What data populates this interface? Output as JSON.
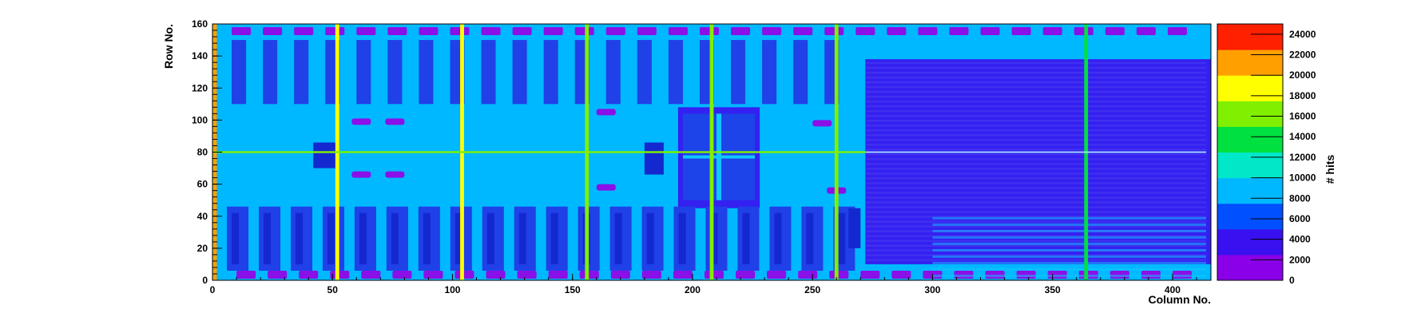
{
  "chart_data": {
    "type": "heatmap",
    "title": "",
    "xlabel": "Column No.",
    "ylabel": "Row No.",
    "zlabel": "# hits",
    "xlim": [
      0,
      416
    ],
    "ylim": [
      0,
      160
    ],
    "zlim": [
      0,
      25000
    ],
    "x_ticks": [
      0,
      50,
      100,
      150,
      200,
      250,
      300,
      350,
      400
    ],
    "y_ticks": [
      0,
      20,
      40,
      60,
      80,
      100,
      120,
      140,
      160
    ],
    "z_ticks": [
      0,
      2000,
      4000,
      6000,
      8000,
      10000,
      12000,
      14000,
      16000,
      18000,
      20000,
      22000,
      24000
    ],
    "colormap": [
      "#8a00e8",
      "#3a10f0",
      "#0050ff",
      "#00b8ff",
      "#00e8c8",
      "#00e040",
      "#80f000",
      "#ffff00",
      "#ffa000",
      "#ff2000"
    ],
    "baseline_hits": 8500,
    "hot_columns": [
      {
        "column": 1,
        "hits": 20000
      },
      {
        "column": 52,
        "hits": 18500
      },
      {
        "column": 104,
        "hits": 17500
      },
      {
        "column": 156,
        "hits": 17000
      },
      {
        "column": 208,
        "hits": 16000
      },
      {
        "column": 260,
        "hits": 16500
      },
      {
        "column": 364,
        "hits": 12500
      }
    ],
    "hot_rows": [
      {
        "row": 80,
        "hits": 16000
      }
    ],
    "regions": [
      {
        "name": "left band",
        "columns": [
          0,
          270
        ],
        "rows": [
          0,
          160
        ],
        "hits": 9000
      },
      {
        "name": "central block",
        "columns": [
          194,
          228
        ],
        "rows": [
          45,
          108
        ],
        "hits": 4000
      },
      {
        "name": "dense region",
        "columns": [
          272,
          416
        ],
        "rows": [
          10,
          138
        ],
        "hits": 2500
      }
    ]
  }
}
